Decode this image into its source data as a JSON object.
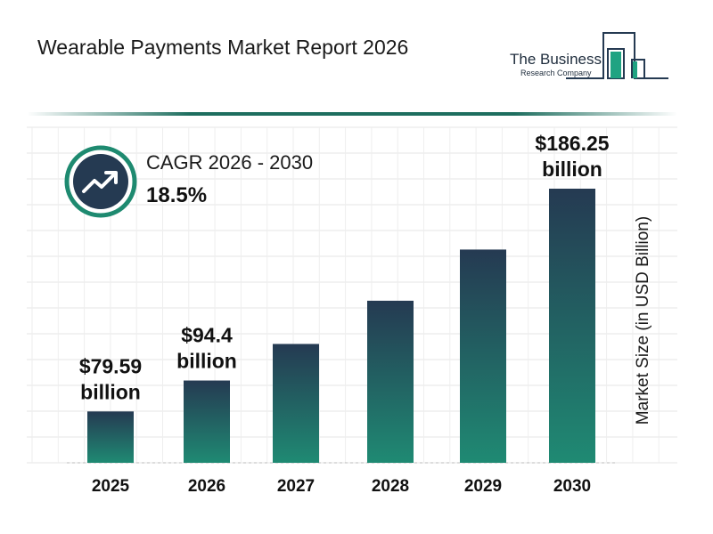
{
  "header": {
    "title": "Wearable Payments Market Report 2026"
  },
  "logo": {
    "line1": "The Business",
    "line2": "Research Company"
  },
  "cagr": {
    "label": "CAGR 2026 - 2030",
    "value": "18.5%",
    "icon": "trending-up-icon"
  },
  "colors": {
    "bar_top": "#253a52",
    "bar_bottom": "#1f8a73",
    "accent": "#1e6e5f",
    "icon_bg": "#253a52"
  },
  "chart_data": {
    "type": "bar",
    "title": "",
    "xlabel": "",
    "ylabel": "Market Size (in USD Billion)",
    "categories": [
      "2025",
      "2026",
      "2027",
      "2028",
      "2029",
      "2030"
    ],
    "values": [
      79.59,
      94.4,
      111.9,
      132.6,
      157.1,
      186.25
    ],
    "data_labels": [
      {
        "index": 0,
        "amount": "$79.59",
        "unit": "billion"
      },
      {
        "index": 1,
        "amount": "$94.4",
        "unit": "billion"
      },
      {
        "index": 5,
        "amount": "$186.25",
        "unit": "billion"
      }
    ],
    "grid": true
  }
}
